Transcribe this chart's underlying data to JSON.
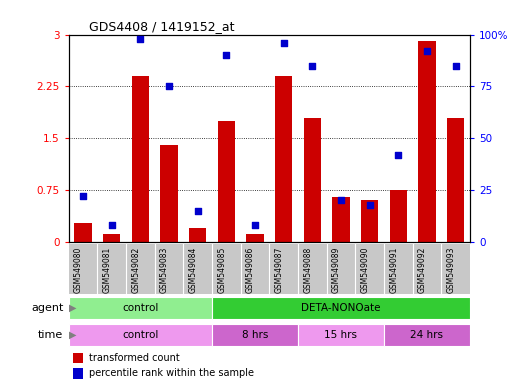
{
  "title": "GDS4408 / 1419152_at",
  "samples": [
    "GSM549080",
    "GSM549081",
    "GSM549082",
    "GSM549083",
    "GSM549084",
    "GSM549085",
    "GSM549086",
    "GSM549087",
    "GSM549088",
    "GSM549089",
    "GSM549090",
    "GSM549091",
    "GSM549092",
    "GSM549093"
  ],
  "red_bars": [
    0.28,
    0.12,
    2.4,
    1.4,
    0.2,
    1.75,
    0.12,
    2.4,
    1.8,
    0.65,
    0.6,
    0.75,
    2.9,
    1.8
  ],
  "blue_squares": [
    22,
    8,
    98,
    75,
    15,
    90,
    8,
    96,
    85,
    20,
    18,
    42,
    92,
    85
  ],
  "ylim_left": [
    0,
    3
  ],
  "ylim_right": [
    0,
    100
  ],
  "yticks_left": [
    0,
    0.75,
    1.5,
    2.25,
    3
  ],
  "yticks_right": [
    0,
    25,
    50,
    75,
    100
  ],
  "ytick_labels_left": [
    "0",
    "0.75",
    "1.5",
    "2.25",
    "3"
  ],
  "ytick_labels_right": [
    "0",
    "25",
    "50",
    "75",
    "100%"
  ],
  "agent_groups": [
    {
      "label": "control",
      "start": 0,
      "end": 5,
      "color": "#90ee90"
    },
    {
      "label": "DETA-NONOate",
      "start": 5,
      "end": 14,
      "color": "#33cc33"
    }
  ],
  "time_groups": [
    {
      "label": "control",
      "start": 0,
      "end": 5,
      "color": "#ee99ee"
    },
    {
      "label": "8 hrs",
      "start": 5,
      "end": 8,
      "color": "#cc66cc"
    },
    {
      "label": "15 hrs",
      "start": 8,
      "end": 11,
      "color": "#ee99ee"
    },
    {
      "label": "24 hrs",
      "start": 11,
      "end": 14,
      "color": "#cc66cc"
    }
  ],
  "bar_color": "#cc0000",
  "square_color": "#0000cc",
  "gray_bg": "#c8c8c8"
}
